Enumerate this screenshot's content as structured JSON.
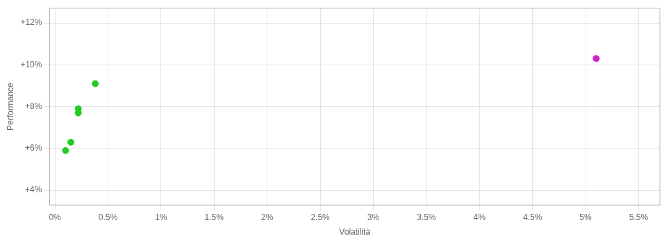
{
  "chart_data": {
    "type": "scatter",
    "xlabel": "Volatilità",
    "ylabel": "Performance",
    "series": [
      {
        "color": "#22cc22",
        "x": [
          0.0038,
          0.0022,
          0.0022,
          0.0015,
          0.001
        ],
        "values": [
          0.091,
          0.079,
          0.077,
          0.063,
          0.059
        ]
      },
      {
        "color": "#cc22cc",
        "x": [
          0.051
        ],
        "values": [
          0.103
        ]
      }
    ],
    "xlim": [
      -0.0005,
      0.057
    ],
    "xticks": [
      {
        "value": 0.0,
        "label": "0%"
      },
      {
        "value": 0.005,
        "label": "0.5%"
      },
      {
        "value": 0.01,
        "label": "1%"
      },
      {
        "value": 0.015,
        "label": "1.5%"
      },
      {
        "value": 0.02,
        "label": "2%"
      },
      {
        "value": 0.025,
        "label": "2.5%"
      },
      {
        "value": 0.03,
        "label": "3%"
      },
      {
        "value": 0.035,
        "label": "3.5%"
      },
      {
        "value": 0.04,
        "label": "4%"
      },
      {
        "value": 0.045,
        "label": "4.5%"
      },
      {
        "value": 0.05,
        "label": "5%"
      },
      {
        "value": 0.055,
        "label": "5.5%"
      }
    ],
    "ylim": [
      0.033,
      0.127
    ],
    "yticks": [
      {
        "value": 0.04,
        "label": "+4%"
      },
      {
        "value": 0.06,
        "label": "+6%"
      },
      {
        "value": 0.08,
        "label": "+8%"
      },
      {
        "value": 0.1,
        "label": "+10%"
      },
      {
        "value": 0.12,
        "label": "+12%"
      }
    ],
    "grid": true
  }
}
